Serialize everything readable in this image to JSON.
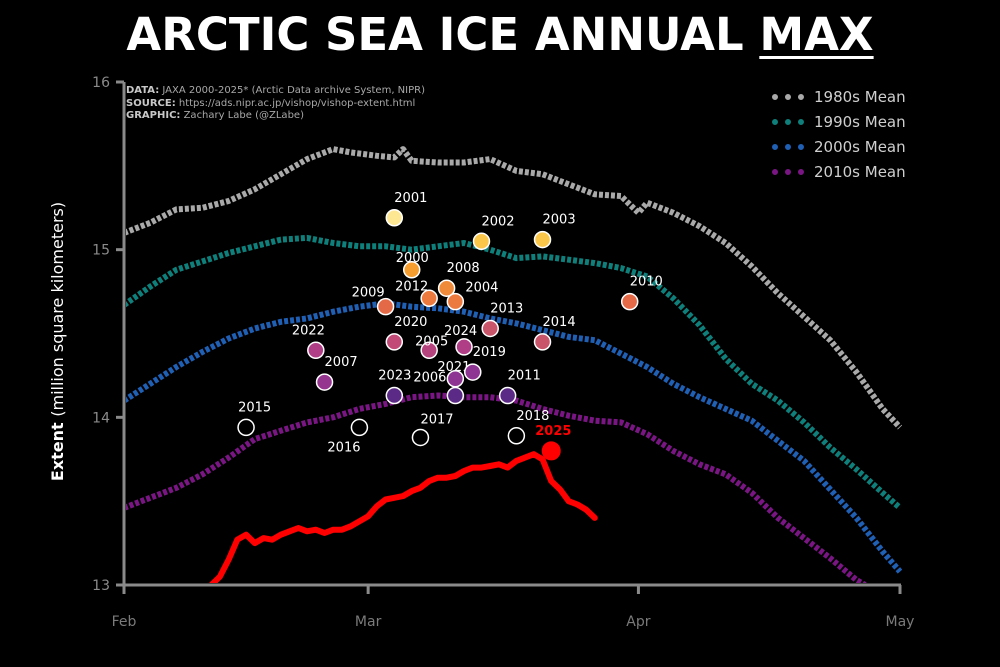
{
  "title": {
    "prefix": "ARCTIC SEA ICE ANNUAL ",
    "emphasis": "MAX"
  },
  "credits": {
    "data_label": "DATA:",
    "data_text": " JAXA 2000-2025* (Arctic Data archive System, NIPR)",
    "source_label": "SOURCE:",
    "source_text": " https://ads.nipr.ac.jp/vishop/vishop-extent.html",
    "graphic_label": "GRAPHIC:",
    "graphic_text": " Zachary Labe (@ZLabe)"
  },
  "colors": {
    "background": "#000000",
    "mean_1980s": "#a9a9a9",
    "mean_1990s": "#0e7f7a",
    "mean_2000s": "#1f5fb4",
    "mean_2010s": "#7a1684",
    "current_2025": "#ff0000"
  },
  "chart_data": {
    "type": "line",
    "title": "ARCTIC SEA ICE ANNUAL MAX",
    "ylabel": "Extent",
    "ylabel_units": "(million square kilometers)",
    "xlabel": "",
    "ylim": [
      13,
      16
    ],
    "yticks": [
      13,
      14,
      15,
      16
    ],
    "xlim": [
      0,
      89
    ],
    "x_units": "days since Feb 1",
    "xticks": [
      {
        "x": 0,
        "label": "Feb"
      },
      {
        "x": 28,
        "label": "Mar"
      },
      {
        "x": 59,
        "label": "Apr"
      },
      {
        "x": 89,
        "label": "May"
      }
    ],
    "legend_position": "top-right",
    "grid": false,
    "series": [
      {
        "name": "1980s Mean",
        "color": "#a9a9a9",
        "points": [
          [
            0,
            15.1
          ],
          [
            3,
            15.16
          ],
          [
            6,
            15.24
          ],
          [
            9,
            15.25
          ],
          [
            12,
            15.29
          ],
          [
            15,
            15.36
          ],
          [
            18,
            15.45
          ],
          [
            21,
            15.54
          ],
          [
            24,
            15.6
          ],
          [
            26,
            15.58
          ],
          [
            29,
            15.56
          ],
          [
            31,
            15.55
          ],
          [
            32,
            15.6
          ],
          [
            33,
            15.53
          ],
          [
            36,
            15.52
          ],
          [
            39,
            15.52
          ],
          [
            42,
            15.54
          ],
          [
            45,
            15.47
          ],
          [
            48,
            15.45
          ],
          [
            51,
            15.39
          ],
          [
            54,
            15.33
          ],
          [
            57,
            15.32
          ],
          [
            59,
            15.22
          ],
          [
            60,
            15.28
          ],
          [
            63,
            15.22
          ],
          [
            66,
            15.14
          ],
          [
            69,
            15.04
          ],
          [
            72,
            14.9
          ],
          [
            75,
            14.74
          ],
          [
            78,
            14.6
          ],
          [
            81,
            14.46
          ],
          [
            84,
            14.27
          ],
          [
            87,
            14.05
          ],
          [
            89,
            13.94
          ]
        ]
      },
      {
        "name": "1990s Mean",
        "color": "#0e7f7a",
        "points": [
          [
            0,
            14.67
          ],
          [
            3,
            14.78
          ],
          [
            6,
            14.88
          ],
          [
            9,
            14.93
          ],
          [
            12,
            14.98
          ],
          [
            15,
            15.02
          ],
          [
            18,
            15.06
          ],
          [
            21,
            15.07
          ],
          [
            24,
            15.04
          ],
          [
            27,
            15.02
          ],
          [
            30,
            15.02
          ],
          [
            33,
            15.0
          ],
          [
            36,
            15.02
          ],
          [
            39,
            15.04
          ],
          [
            42,
            15.0
          ],
          [
            45,
            14.95
          ],
          [
            48,
            14.96
          ],
          [
            51,
            14.94
          ],
          [
            54,
            14.92
          ],
          [
            57,
            14.89
          ],
          [
            60,
            14.84
          ],
          [
            63,
            14.71
          ],
          [
            66,
            14.55
          ],
          [
            69,
            14.35
          ],
          [
            72,
            14.2
          ],
          [
            75,
            14.1
          ],
          [
            78,
            13.97
          ],
          [
            81,
            13.82
          ],
          [
            84,
            13.69
          ],
          [
            87,
            13.55
          ],
          [
            89,
            13.46
          ]
        ]
      },
      {
        "name": "2000s Mean",
        "color": "#1f5fb4",
        "points": [
          [
            0,
            14.1
          ],
          [
            3,
            14.2
          ],
          [
            6,
            14.3
          ],
          [
            9,
            14.39
          ],
          [
            12,
            14.47
          ],
          [
            15,
            14.53
          ],
          [
            18,
            14.57
          ],
          [
            21,
            14.59
          ],
          [
            24,
            14.63
          ],
          [
            27,
            14.66
          ],
          [
            30,
            14.68
          ],
          [
            33,
            14.66
          ],
          [
            36,
            14.65
          ],
          [
            39,
            14.63
          ],
          [
            42,
            14.59
          ],
          [
            45,
            14.56
          ],
          [
            48,
            14.52
          ],
          [
            51,
            14.48
          ],
          [
            54,
            14.46
          ],
          [
            57,
            14.38
          ],
          [
            60,
            14.3
          ],
          [
            63,
            14.2
          ],
          [
            66,
            14.12
          ],
          [
            69,
            14.05
          ],
          [
            72,
            13.98
          ],
          [
            75,
            13.86
          ],
          [
            78,
            13.74
          ],
          [
            81,
            13.57
          ],
          [
            84,
            13.4
          ],
          [
            87,
            13.2
          ],
          [
            89,
            13.08
          ]
        ]
      },
      {
        "name": "2010s Mean",
        "color": "#7a1684",
        "points": [
          [
            0,
            13.46
          ],
          [
            3,
            13.52
          ],
          [
            6,
            13.58
          ],
          [
            9,
            13.66
          ],
          [
            12,
            13.76
          ],
          [
            15,
            13.87
          ],
          [
            18,
            13.92
          ],
          [
            21,
            13.97
          ],
          [
            24,
            14.0
          ],
          [
            27,
            14.05
          ],
          [
            30,
            14.08
          ],
          [
            33,
            14.12
          ],
          [
            36,
            14.13
          ],
          [
            39,
            14.12
          ],
          [
            42,
            14.12
          ],
          [
            45,
            14.1
          ],
          [
            48,
            14.05
          ],
          [
            51,
            14.01
          ],
          [
            54,
            13.98
          ],
          [
            57,
            13.97
          ],
          [
            60,
            13.9
          ],
          [
            63,
            13.8
          ],
          [
            66,
            13.72
          ],
          [
            69,
            13.66
          ],
          [
            72,
            13.55
          ],
          [
            75,
            13.4
          ],
          [
            78,
            13.28
          ],
          [
            81,
            13.16
          ],
          [
            84,
            13.03
          ],
          [
            85,
            13.0
          ]
        ]
      },
      {
        "name": "2025",
        "color": "#ff0000",
        "points": [
          [
            10,
            13.0
          ],
          [
            11,
            13.05
          ],
          [
            12,
            13.15
          ],
          [
            13,
            13.27
          ],
          [
            14,
            13.3
          ],
          [
            15,
            13.25
          ],
          [
            16,
            13.28
          ],
          [
            17,
            13.27
          ],
          [
            18,
            13.3
          ],
          [
            19,
            13.32
          ],
          [
            20,
            13.34
          ],
          [
            21,
            13.32
          ],
          [
            22,
            13.33
          ],
          [
            23,
            13.31
          ],
          [
            24,
            13.33
          ],
          [
            25,
            13.33
          ],
          [
            26,
            13.35
          ],
          [
            27,
            13.38
          ],
          [
            28,
            13.41
          ],
          [
            29,
            13.47
          ],
          [
            30,
            13.51
          ],
          [
            31,
            13.52
          ],
          [
            32,
            13.53
          ],
          [
            33,
            13.56
          ],
          [
            34,
            13.58
          ],
          [
            35,
            13.62
          ],
          [
            36,
            13.64
          ],
          [
            37,
            13.64
          ],
          [
            38,
            13.65
          ],
          [
            39,
            13.68
          ],
          [
            40,
            13.7
          ],
          [
            41,
            13.7
          ],
          [
            42,
            13.71
          ],
          [
            43,
            13.72
          ],
          [
            44,
            13.7
          ],
          [
            45,
            13.74
          ],
          [
            46,
            13.76
          ],
          [
            47,
            13.78
          ],
          [
            48,
            13.75
          ],
          [
            49,
            13.62
          ],
          [
            50,
            13.57
          ],
          [
            51,
            13.5
          ],
          [
            52,
            13.48
          ],
          [
            53,
            13.45
          ],
          [
            54,
            13.4
          ]
        ]
      }
    ],
    "annual_max_points": [
      {
        "year": "2001",
        "x": 31,
        "y": 15.19,
        "color": "#fde793"
      },
      {
        "year": "2002",
        "x": 41,
        "y": 15.05,
        "color": "#fbc74a"
      },
      {
        "year": "2003",
        "x": 48,
        "y": 15.06,
        "color": "#fbc74a"
      },
      {
        "year": "2000",
        "x": 33,
        "y": 14.88,
        "color": "#f59e2f"
      },
      {
        "year": "2008",
        "x": 37,
        "y": 14.77,
        "color": "#ef8a3a"
      },
      {
        "year": "2012",
        "x": 35,
        "y": 14.71,
        "color": "#ec7a3e"
      },
      {
        "year": "2004",
        "x": 38,
        "y": 14.69,
        "color": "#ec7a3e"
      },
      {
        "year": "2009",
        "x": 30,
        "y": 14.66,
        "color": "#e46a47"
      },
      {
        "year": "2010",
        "x": 58,
        "y": 14.69,
        "color": "#e46a47"
      },
      {
        "year": "2013",
        "x": 42,
        "y": 14.53,
        "color": "#c9556a"
      },
      {
        "year": "2014",
        "x": 48,
        "y": 14.45,
        "color": "#c9556a"
      },
      {
        "year": "2020",
        "x": 31,
        "y": 14.45,
        "color": "#c24a77"
      },
      {
        "year": "2005",
        "x": 35,
        "y": 14.4,
        "color": "#b5437e"
      },
      {
        "year": "2024",
        "x": 39,
        "y": 14.42,
        "color": "#b03e86"
      },
      {
        "year": "2022",
        "x": 22,
        "y": 14.4,
        "color": "#b03e86"
      },
      {
        "year": "2007",
        "x": 23,
        "y": 14.21,
        "color": "#96358f"
      },
      {
        "year": "2021",
        "x": 38,
        "y": 14.23,
        "color": "#8e3594"
      },
      {
        "year": "2019",
        "x": 40,
        "y": 14.27,
        "color": "#8e3594"
      },
      {
        "year": "2023",
        "x": 31,
        "y": 14.13,
        "color": "#5b2a86"
      },
      {
        "year": "2006",
        "x": 38,
        "y": 14.13,
        "color": "#5b2a86"
      },
      {
        "year": "2011",
        "x": 44,
        "y": 14.13,
        "color": "#5b2a86"
      },
      {
        "year": "2015",
        "x": 14,
        "y": 13.94,
        "color": "#000000"
      },
      {
        "year": "2016",
        "x": 27,
        "y": 13.94,
        "color": "#000000"
      },
      {
        "year": "2017",
        "x": 34,
        "y": 13.88,
        "color": "#000000"
      },
      {
        "year": "2018",
        "x": 45,
        "y": 13.89,
        "color": "#000000"
      },
      {
        "year": "2025",
        "x": 49,
        "y": 13.8,
        "color": "#ff0000",
        "highlight": true
      }
    ]
  }
}
